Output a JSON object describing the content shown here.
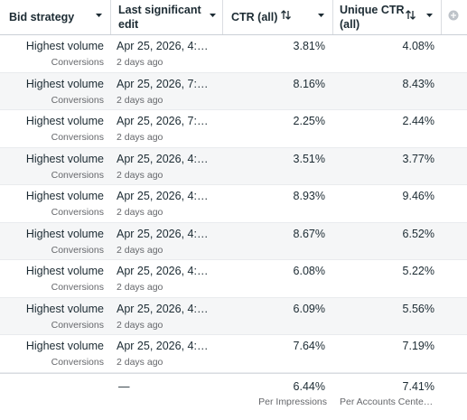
{
  "table": {
    "headers": [
      "Bid strategy",
      "Last significant edit",
      "CTR (all)",
      "Unique CTR (all)"
    ],
    "rows": [
      [
        "Highest volume",
        "Conversions",
        "Apr 25, 2026, 4:…",
        "2 days ago",
        "3.81%",
        "4.08%"
      ],
      [
        "Highest volume",
        "Conversions",
        "Apr 25, 2026, 7:…",
        "2 days ago",
        "8.16%",
        "8.43%"
      ],
      [
        "Highest volume",
        "Conversions",
        "Apr 25, 2026, 7:…",
        "2 days ago",
        "2.25%",
        "2.44%"
      ],
      [
        "Highest volume",
        "Conversions",
        "Apr 25, 2026, 4:…",
        "2 days ago",
        "3.51%",
        "3.77%"
      ],
      [
        "Highest volume",
        "Conversions",
        "Apr 25, 2026, 4:…",
        "2 days ago",
        "8.93%",
        "9.46%"
      ],
      [
        "Highest volume",
        "Conversions",
        "Apr 25, 2026, 4:…",
        "2 days ago",
        "8.67%",
        "6.52%"
      ],
      [
        "Highest volume",
        "Conversions",
        "Apr 25, 2026, 4:…",
        "2 days ago",
        "6.08%",
        "5.22%"
      ],
      [
        "Highest volume",
        "Conversions",
        "Apr 25, 2026, 4:…",
        "2 days ago",
        "6.09%",
        "5.56%"
      ],
      [
        "Highest volume",
        "Conversions",
        "Apr 25, 2026, 4:…",
        "2 days ago",
        "7.64%",
        "7.19%"
      ]
    ],
    "footer": {
      "bid": "—",
      "ctr": "6.44%",
      "ctr_note": "Per Impressions",
      "unique_ctr": "7.41%",
      "unique_ctr_note": "Per Accounts Cente…"
    }
  }
}
